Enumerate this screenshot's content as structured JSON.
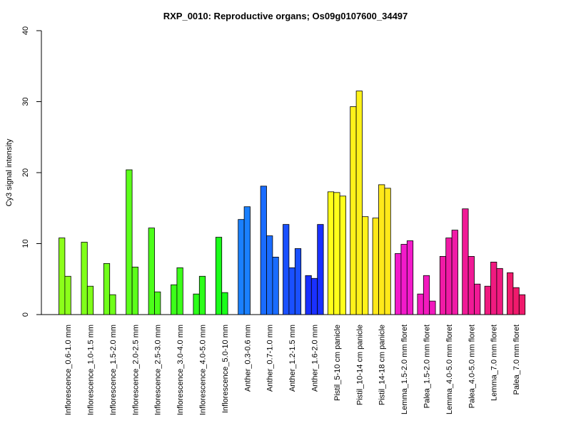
{
  "chart_data": {
    "type": "bar",
    "title": "RXP_0010: Reproductive organs; Os09g0107600_34497",
    "xlabel": "",
    "ylabel": "Cy3 signal intensity",
    "ylim": [
      0,
      40
    ],
    "yticks": [
      0,
      10,
      20,
      30,
      40
    ],
    "grid": false,
    "groups": [
      {
        "label": "Inflorescence_0.6-1.0 mm",
        "color": "#8cff1a",
        "values": [
          10.8,
          5.4
        ]
      },
      {
        "label": "Inflorescence_1.0-1.5 mm",
        "color": "#80ff1a",
        "values": [
          10.2,
          4.0
        ]
      },
      {
        "label": "Inflorescence_1.5-2.0 mm",
        "color": "#70ff1a",
        "values": [
          7.2,
          2.8
        ]
      },
      {
        "label": "Inflorescence_2.0-2.5 mm",
        "color": "#5cff1a",
        "values": [
          20.4,
          6.7
        ]
      },
      {
        "label": "Inflorescence_2.5-3.0 mm",
        "color": "#4cff1a",
        "values": [
          12.2,
          3.2
        ]
      },
      {
        "label": "Inflorescence_3.0-4.0 mm",
        "color": "#3cff1a",
        "values": [
          4.2,
          6.6
        ]
      },
      {
        "label": "Inflorescence_4.0-5.0 mm",
        "color": "#2cff1a",
        "values": [
          2.9,
          5.4
        ]
      },
      {
        "label": "Inflorescence_5.0-10 mm",
        "color": "#1aff1a",
        "values": [
          10.9,
          3.1
        ]
      },
      {
        "label": "Anther_0.3-0.6 mm",
        "color": "#1a80ff",
        "values": [
          13.4,
          15.2
        ]
      },
      {
        "label": "Anther_0.7-1.0 mm",
        "color": "#1a6cff",
        "values": [
          18.1,
          11.1,
          8.1
        ]
      },
      {
        "label": "Anther_1.2-1.5 mm",
        "color": "#1a50ff",
        "values": [
          12.7,
          6.6,
          9.3
        ]
      },
      {
        "label": "Anther_1.6-2.0 mm",
        "color": "#1a30ff",
        "values": [
          5.5,
          5.1,
          12.7
        ]
      },
      {
        "label": "Pistil_5-10 cm panicle",
        "color": "#ffff1a",
        "values": [
          17.3,
          17.2,
          16.7
        ]
      },
      {
        "label": "Pistil_10-14 cm panicle",
        "color": "#fff21a",
        "values": [
          29.3,
          31.5,
          13.8
        ]
      },
      {
        "label": "Pistil_14-18 cm panicle",
        "color": "#ffe81a",
        "values": [
          13.6,
          18.3,
          17.8
        ]
      },
      {
        "label": "Lemma_1.5-2.0 mm floret",
        "color": "#f21aca",
        "values": [
          8.6,
          9.9,
          10.4
        ]
      },
      {
        "label": "Palea_1.5-2.0 mm floret",
        "color": "#f21abe",
        "values": [
          2.9,
          5.5,
          1.9
        ]
      },
      {
        "label": "Lemma_4.0-5.0 mm floret",
        "color": "#f01aa6",
        "values": [
          8.2,
          10.8,
          11.9
        ]
      },
      {
        "label": "Palea_4.0-5.0 mm floret",
        "color": "#f01a96",
        "values": [
          14.9,
          8.2,
          4.3
        ]
      },
      {
        "label": "Lemma_7.0 mm floret",
        "color": "#f01a80",
        "values": [
          4.0,
          7.4,
          6.5
        ]
      },
      {
        "label": "Palea_7.0 mm floret",
        "color": "#f01a6c",
        "values": [
          5.9,
          3.8,
          2.8
        ]
      }
    ]
  }
}
